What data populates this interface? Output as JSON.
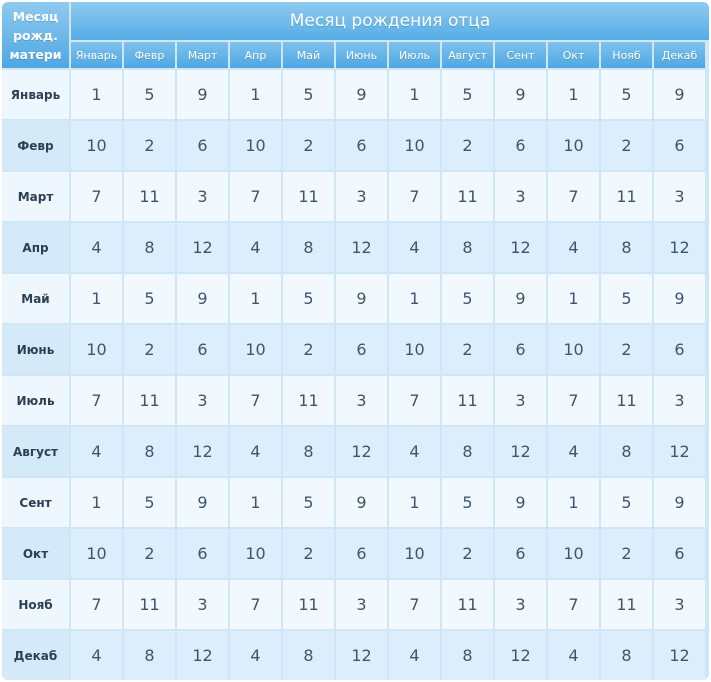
{
  "table": {
    "corner_label": "Месяц\nрожд.\nматери",
    "title": "Месяц рождения отца",
    "columns": [
      "Январь",
      "Февр",
      "Март",
      "Апр",
      "Май",
      "Июнь",
      "Июль",
      "Август",
      "Сент",
      "Окт",
      "Нояб",
      "Декаб"
    ],
    "rows": [
      {
        "label": "Январь",
        "values": [
          "1",
          "5",
          "9",
          "1",
          "5",
          "9",
          "1",
          "5",
          "9",
          "1",
          "5",
          "9"
        ]
      },
      {
        "label": "Февр",
        "values": [
          "10",
          "2",
          "6",
          "10",
          "2",
          "6",
          "10",
          "2",
          "6",
          "10",
          "2",
          "6"
        ]
      },
      {
        "label": "Март",
        "values": [
          "7",
          "11",
          "3",
          "7",
          "11",
          "3",
          "7",
          "11",
          "3",
          "7",
          "11",
          "3"
        ]
      },
      {
        "label": "Апр",
        "values": [
          "4",
          "8",
          "12",
          "4",
          "8",
          "12",
          "4",
          "8",
          "12",
          "4",
          "8",
          "12"
        ]
      },
      {
        "label": "Май",
        "values": [
          "1",
          "5",
          "9",
          "1",
          "5",
          "9",
          "1",
          "5",
          "9",
          "1",
          "5",
          "9"
        ]
      },
      {
        "label": "Июнь",
        "values": [
          "10",
          "2",
          "6",
          "10",
          "2",
          "6",
          "10",
          "2",
          "6",
          "10",
          "2",
          "6"
        ]
      },
      {
        "label": "Июль",
        "values": [
          "7",
          "11",
          "3",
          "7",
          "11",
          "3",
          "7",
          "11",
          "3",
          "7",
          "11",
          "3"
        ]
      },
      {
        "label": "Август",
        "values": [
          "4",
          "8",
          "12",
          "4",
          "8",
          "12",
          "4",
          "8",
          "12",
          "4",
          "8",
          "12"
        ]
      },
      {
        "label": "Сент",
        "values": [
          "1",
          "5",
          "9",
          "1",
          "5",
          "9",
          "1",
          "5",
          "9",
          "1",
          "5",
          "9"
        ]
      },
      {
        "label": "Окт",
        "values": [
          "10",
          "2",
          "6",
          "10",
          "2",
          "6",
          "10",
          "2",
          "6",
          "10",
          "2",
          "6"
        ]
      },
      {
        "label": "Нояб",
        "values": [
          "7",
          "11",
          "3",
          "7",
          "11",
          "3",
          "7",
          "11",
          "3",
          "7",
          "11",
          "3"
        ]
      },
      {
        "label": "Декаб",
        "values": [
          "4",
          "8",
          "12",
          "4",
          "8",
          "12",
          "4",
          "8",
          "12",
          "4",
          "8",
          "12"
        ]
      }
    ]
  },
  "colors": {
    "header_blue": "#4ea7e2",
    "cell_light": "#f2f9fe",
    "cell_dark": "#dceefb",
    "text": "#3e5570"
  }
}
